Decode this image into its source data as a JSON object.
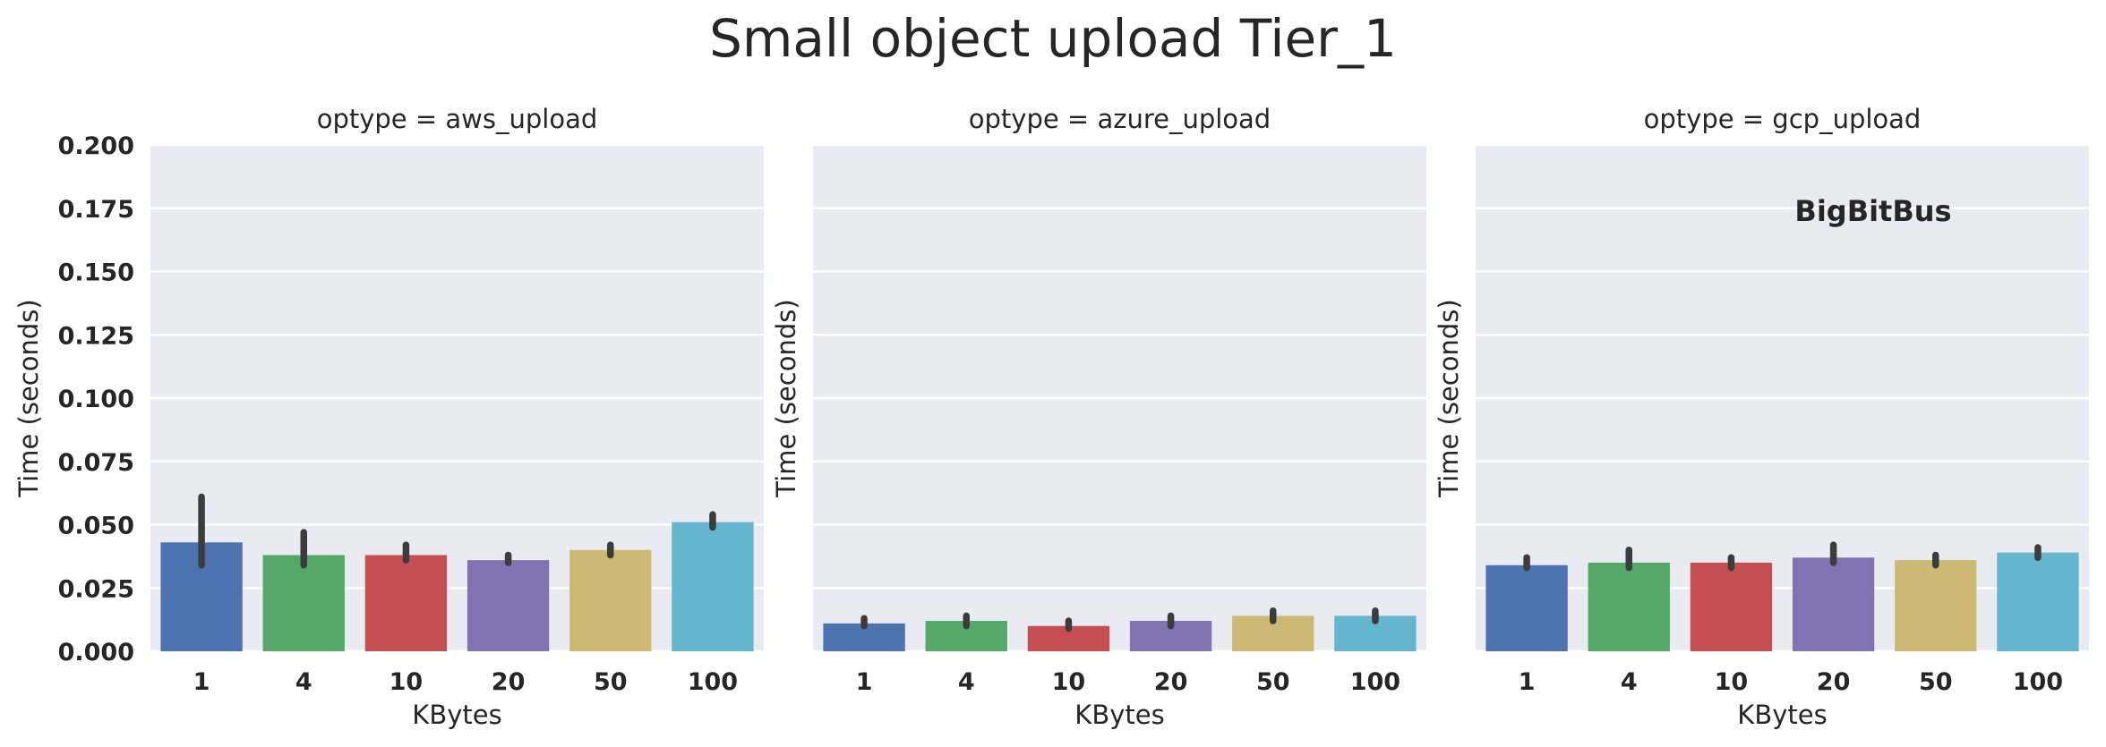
{
  "title": "Small object upload Tier_1",
  "watermark": "BigBitBus",
  "colors": {
    "background": "#eaeaf2",
    "grid": "#ffffff",
    "errorbar": "#3c3c3c",
    "bars": [
      "#4c72b0",
      "#55a868",
      "#c44e52",
      "#8172b2",
      "#ccb974",
      "#64b5cd"
    ]
  },
  "chart_data": [
    {
      "type": "bar",
      "title": "optype = aws_upload",
      "xlabel": "KBytes",
      "ylabel": "Time (seconds)",
      "ylim": [
        0,
        0.2
      ],
      "yticks": [
        "0.000",
        "0.025",
        "0.050",
        "0.075",
        "0.100",
        "0.125",
        "0.150",
        "0.175",
        "0.200"
      ],
      "grid": true,
      "categories": [
        "1",
        "4",
        "10",
        "20",
        "50",
        "100"
      ],
      "values": [
        0.043,
        0.038,
        0.038,
        0.036,
        0.04,
        0.051
      ],
      "errors": [
        [
          0.034,
          0.061
        ],
        [
          0.034,
          0.047
        ],
        [
          0.036,
          0.042
        ],
        [
          0.035,
          0.038
        ],
        [
          0.038,
          0.042
        ],
        [
          0.049,
          0.054
        ]
      ]
    },
    {
      "type": "bar",
      "title": "optype = azure_upload",
      "xlabel": "KBytes",
      "ylabel": "Time (seconds)",
      "ylim": [
        0,
        0.2
      ],
      "grid": true,
      "categories": [
        "1",
        "4",
        "10",
        "20",
        "50",
        "100"
      ],
      "values": [
        0.011,
        0.012,
        0.01,
        0.012,
        0.014,
        0.014
      ],
      "errors": [
        [
          0.01,
          0.013
        ],
        [
          0.01,
          0.014
        ],
        [
          0.009,
          0.012
        ],
        [
          0.01,
          0.014
        ],
        [
          0.012,
          0.016
        ],
        [
          0.012,
          0.016
        ]
      ]
    },
    {
      "type": "bar",
      "title": "optype = gcp_upload",
      "xlabel": "KBytes",
      "ylabel": "Time (seconds)",
      "ylim": [
        0,
        0.2
      ],
      "grid": true,
      "categories": [
        "1",
        "4",
        "10",
        "20",
        "50",
        "100"
      ],
      "values": [
        0.034,
        0.035,
        0.035,
        0.037,
        0.036,
        0.039
      ],
      "errors": [
        [
          0.033,
          0.037
        ],
        [
          0.033,
          0.04
        ],
        [
          0.033,
          0.037
        ],
        [
          0.035,
          0.042
        ],
        [
          0.034,
          0.038
        ],
        [
          0.037,
          0.041
        ]
      ]
    }
  ]
}
